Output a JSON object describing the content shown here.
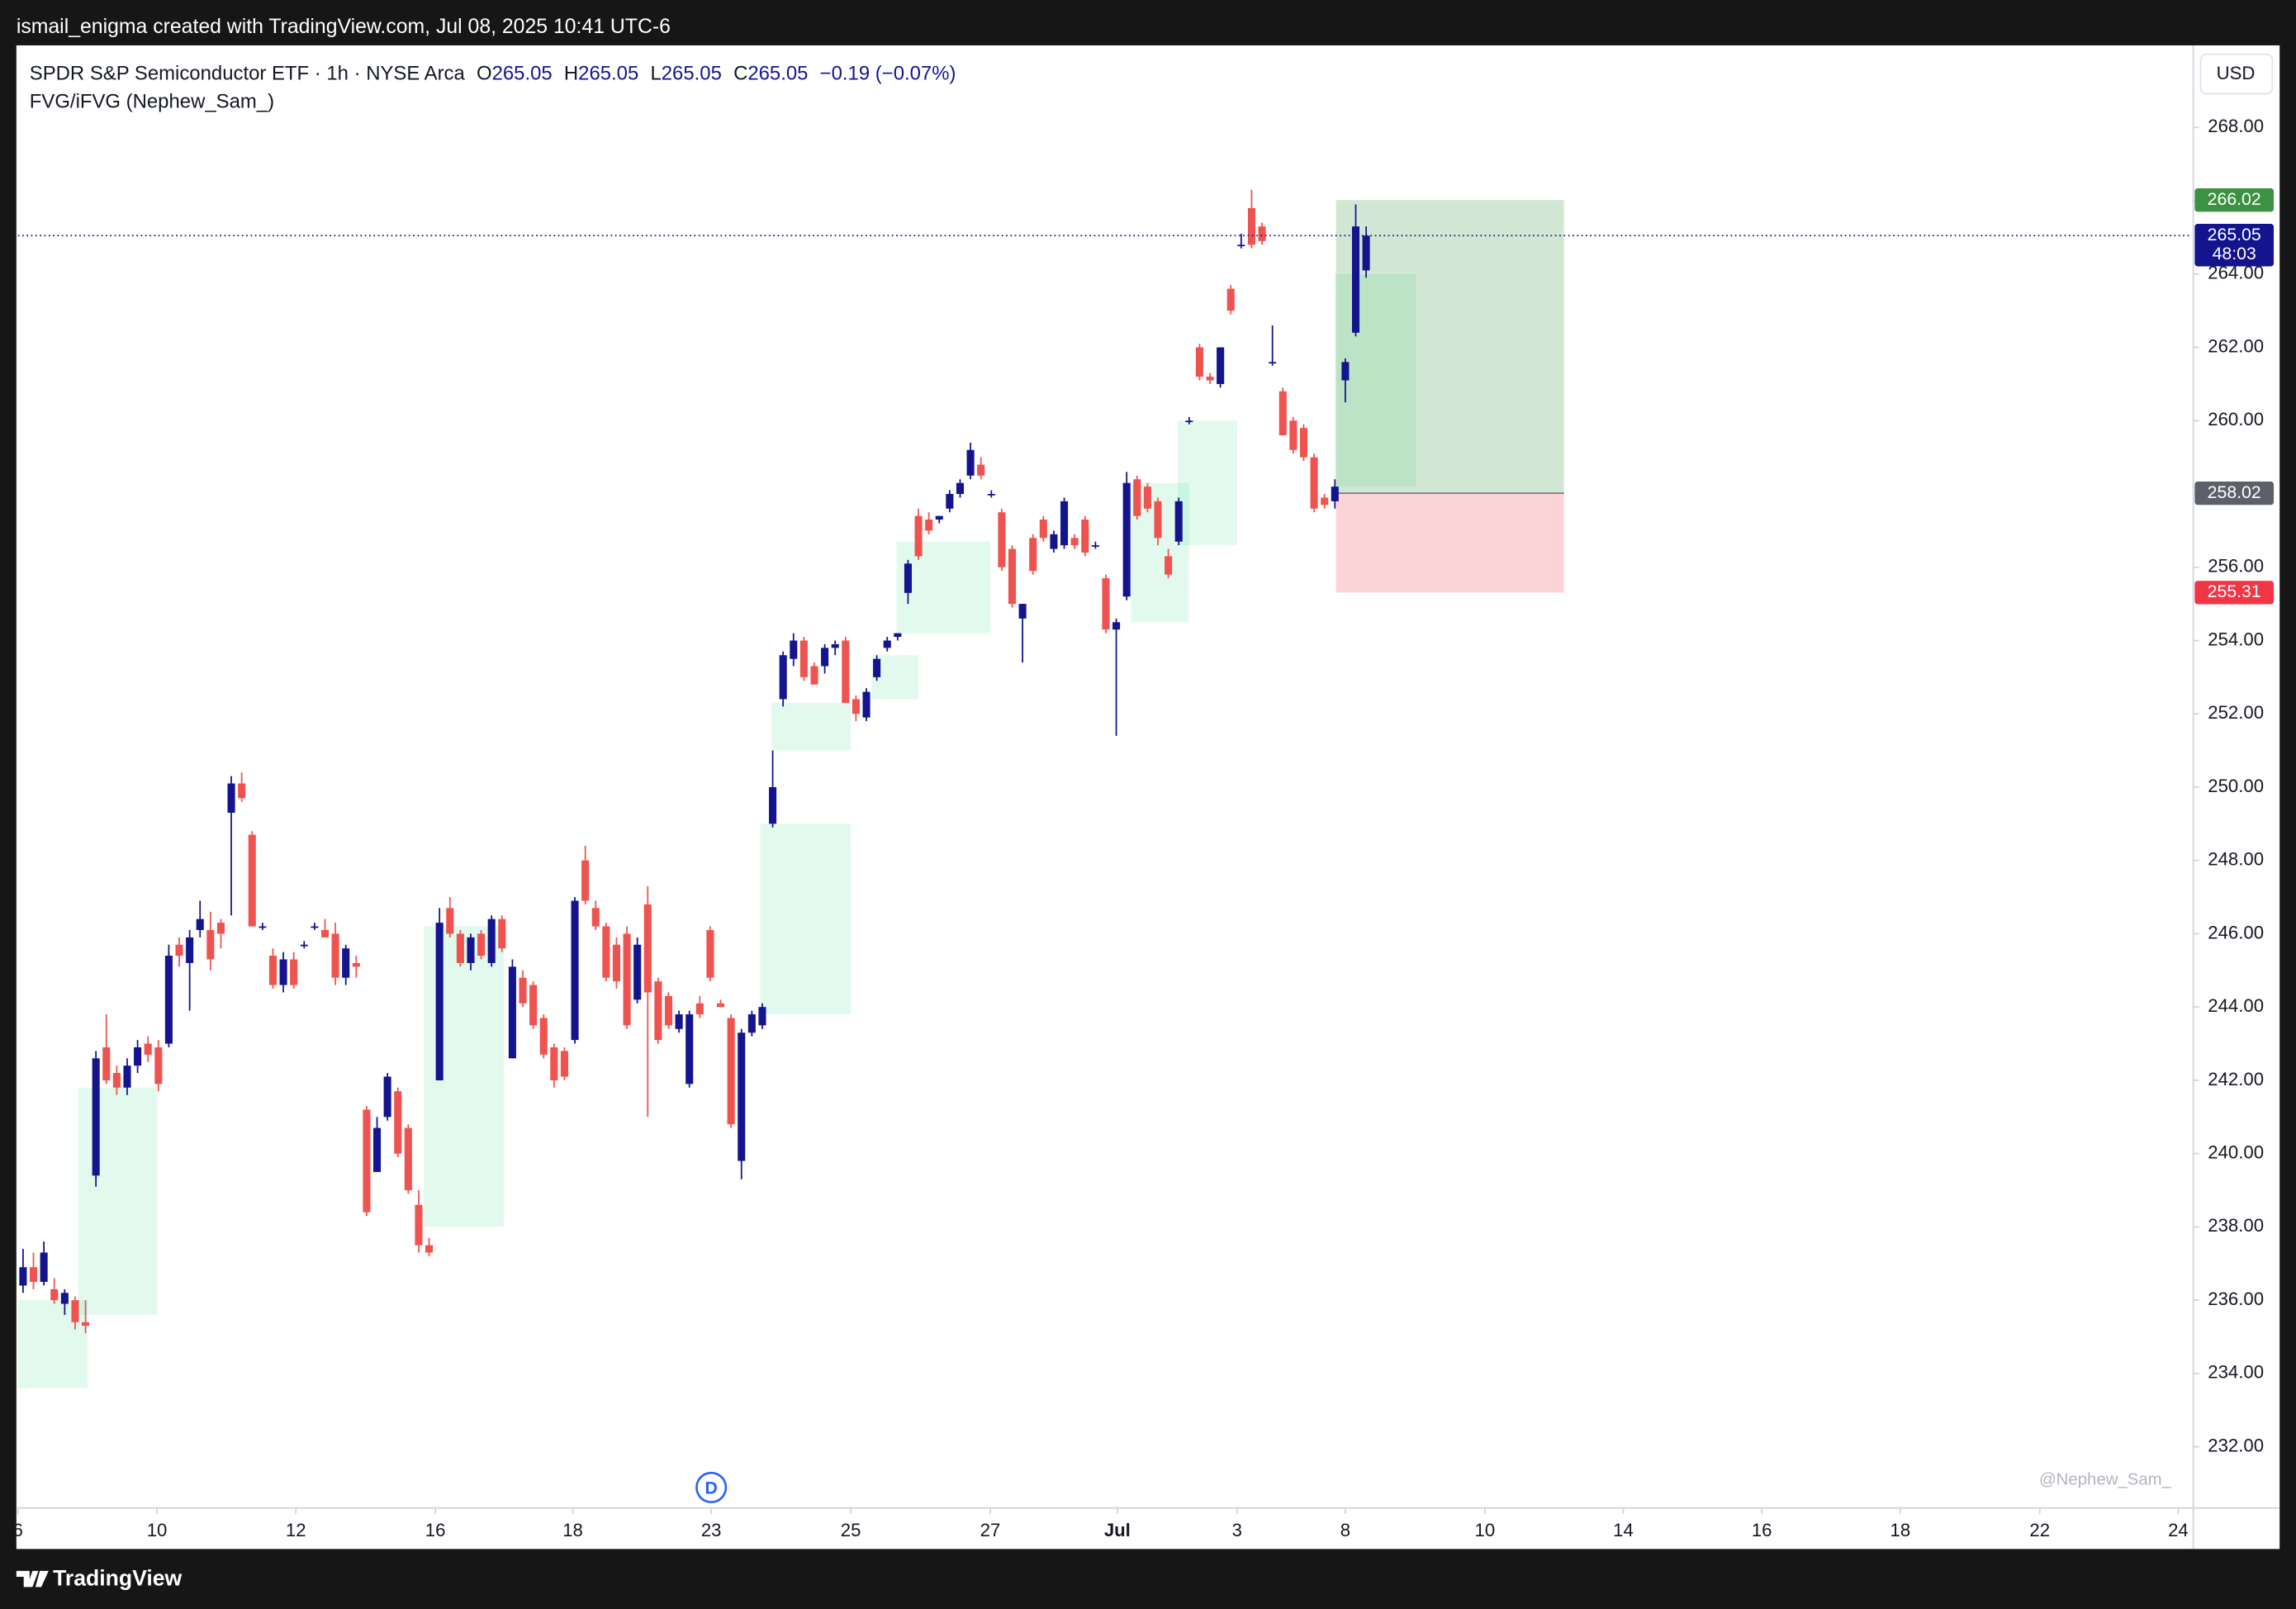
{
  "header": {
    "text": "ismail_enigma created with TradingView.com, Jul 08, 2025 10:41 UTC-6"
  },
  "footer": {
    "brand": "TradingView"
  },
  "chart_data": {
    "type": "candlestick",
    "legend": {
      "symbol": "SPDR S&P Semiconductor ETF · 1h · NYSE Arca",
      "o_label": "O",
      "open": 265.05,
      "h_label": "H",
      "high": 265.05,
      "l_label": "L",
      "low": 265.05,
      "c_label": "C",
      "close": 265.05,
      "change_label": "−0.19 (−0.07%)",
      "indicator": "FVG/iFVG (Nephew_Sam_)"
    },
    "currency": "USD",
    "watermark": "@Nephew_Sam_",
    "marker": {
      "label": "D",
      "x": 66.1
    },
    "up_color": "#14148f",
    "down_color": "#ef5350",
    "grid": false,
    "ohlc": [
      [
        236.4,
        237.4,
        236.2,
        236.9
      ],
      [
        236.9,
        237.3,
        236.3,
        236.5
      ],
      [
        236.5,
        237.6,
        236.4,
        237.3
      ],
      [
        236.3,
        236.6,
        235.9,
        236.0
      ],
      [
        235.9,
        236.3,
        235.6,
        236.2
      ],
      [
        236.0,
        236.1,
        235.2,
        235.4
      ],
      [
        235.4,
        236.0,
        235.1,
        235.3
      ],
      [
        239.4,
        242.8,
        239.1,
        242.6
      ],
      [
        242.9,
        243.8,
        241.9,
        242.0
      ],
      [
        242.2,
        242.4,
        241.6,
        241.8
      ],
      [
        241.8,
        242.6,
        241.6,
        242.4
      ],
      [
        242.4,
        243.1,
        242.2,
        242.9
      ],
      [
        243.0,
        243.2,
        242.5,
        242.7
      ],
      [
        242.9,
        243.1,
        241.7,
        241.9
      ],
      [
        243.0,
        245.7,
        242.9,
        245.4
      ],
      [
        245.7,
        245.9,
        245.1,
        245.4
      ],
      [
        245.2,
        246.1,
        243.9,
        245.9
      ],
      [
        246.1,
        246.9,
        245.9,
        246.4
      ],
      [
        246.1,
        246.6,
        245.0,
        245.3
      ],
      [
        246.3,
        246.4,
        245.6,
        246.0
      ],
      [
        249.3,
        250.3,
        246.5,
        250.1
      ],
      [
        250.1,
        250.4,
        249.6,
        249.7
      ],
      [
        248.7,
        248.8,
        246.2,
        246.2
      ],
      [
        246.2,
        246.3,
        246.1,
        246.2
      ],
      [
        245.4,
        245.6,
        244.5,
        244.6
      ],
      [
        244.6,
        245.5,
        244.4,
        245.3
      ],
      [
        245.3,
        245.5,
        244.5,
        244.6
      ],
      [
        245.7,
        245.8,
        245.6,
        245.7
      ],
      [
        246.2,
        246.3,
        246.1,
        246.2
      ],
      [
        246.1,
        246.4,
        245.9,
        245.9
      ],
      [
        246.0,
        246.3,
        244.6,
        244.8
      ],
      [
        244.8,
        245.7,
        244.6,
        245.6
      ],
      [
        245.2,
        245.4,
        244.8,
        245.1
      ],
      [
        241.2,
        241.3,
        238.3,
        238.4
      ],
      [
        239.5,
        241.0,
        239.5,
        240.7
      ],
      [
        241.0,
        242.2,
        240.9,
        242.1
      ],
      [
        241.7,
        241.8,
        239.9,
        240.0
      ],
      [
        240.7,
        240.8,
        238.9,
        239.0
      ],
      [
        238.6,
        239.0,
        237.3,
        237.5
      ],
      [
        237.5,
        237.7,
        237.2,
        237.3
      ],
      [
        242.0,
        246.7,
        242.0,
        246.3
      ],
      [
        246.7,
        247.0,
        245.9,
        246.0
      ],
      [
        246.0,
        246.1,
        245.1,
        245.2
      ],
      [
        245.2,
        246.0,
        245.0,
        245.9
      ],
      [
        246.0,
        246.1,
        245.3,
        245.4
      ],
      [
        245.2,
        246.5,
        245.1,
        246.4
      ],
      [
        246.4,
        246.5,
        245.5,
        245.6
      ],
      [
        242.6,
        245.3,
        242.6,
        245.1
      ],
      [
        244.8,
        245.0,
        244.0,
        244.1
      ],
      [
        244.6,
        244.7,
        243.4,
        243.5
      ],
      [
        243.7,
        243.8,
        242.6,
        242.7
      ],
      [
        242.9,
        243.0,
        241.8,
        242.0
      ],
      [
        242.8,
        242.9,
        242.0,
        242.1
      ],
      [
        243.1,
        247.0,
        243.0,
        246.9
      ],
      [
        248.0,
        248.4,
        246.8,
        246.9
      ],
      [
        246.7,
        246.9,
        246.1,
        246.2
      ],
      [
        246.2,
        246.3,
        244.7,
        244.8
      ],
      [
        245.7,
        245.9,
        244.5,
        244.7
      ],
      [
        246.0,
        246.2,
        243.4,
        243.5
      ],
      [
        244.2,
        245.9,
        244.1,
        245.7
      ],
      [
        246.8,
        247.3,
        241.0,
        244.4
      ],
      [
        244.7,
        244.8,
        243.0,
        243.1
      ],
      [
        244.3,
        244.4,
        243.4,
        243.5
      ],
      [
        243.4,
        243.9,
        243.3,
        243.8
      ],
      [
        241.9,
        243.9,
        241.8,
        243.8
      ],
      [
        244.1,
        244.3,
        243.7,
        243.8
      ],
      [
        246.1,
        246.2,
        244.7,
        244.8
      ],
      [
        244.1,
        244.2,
        244.0,
        244.0
      ],
      [
        243.7,
        243.8,
        240.7,
        240.8
      ],
      [
        239.8,
        243.4,
        239.3,
        243.3
      ],
      [
        243.3,
        243.9,
        243.2,
        243.8
      ],
      [
        243.5,
        244.1,
        243.4,
        244.0
      ],
      [
        249.0,
        251.0,
        248.9,
        250.0
      ],
      [
        252.4,
        253.7,
        252.2,
        253.6
      ],
      [
        253.5,
        254.2,
        253.3,
        254.0
      ],
      [
        254.0,
        254.1,
        252.9,
        253.0
      ],
      [
        253.3,
        253.4,
        252.8,
        252.8
      ],
      [
        253.3,
        253.9,
        253.1,
        253.8
      ],
      [
        253.8,
        254.0,
        253.6,
        253.9
      ],
      [
        254.0,
        254.1,
        252.3,
        252.3
      ],
      [
        252.4,
        252.5,
        251.8,
        252.0
      ],
      [
        251.9,
        252.7,
        251.8,
        252.6
      ],
      [
        253.0,
        253.6,
        252.9,
        253.5
      ],
      [
        253.8,
        254.1,
        253.7,
        254.0
      ],
      [
        254.1,
        254.2,
        254.0,
        254.2
      ],
      [
        255.3,
        256.2,
        255.0,
        256.1
      ],
      [
        257.4,
        257.6,
        256.2,
        256.3
      ],
      [
        257.3,
        257.5,
        256.9,
        257.0
      ],
      [
        257.3,
        257.4,
        257.2,
        257.4
      ],
      [
        257.6,
        258.1,
        257.5,
        258.0
      ],
      [
        258.0,
        258.4,
        257.9,
        258.3
      ],
      [
        258.5,
        259.4,
        258.4,
        259.2
      ],
      [
        258.8,
        259.0,
        258.4,
        258.5
      ],
      [
        258.0,
        258.1,
        257.9,
        258.0
      ],
      [
        257.5,
        257.6,
        255.9,
        256.0
      ],
      [
        256.5,
        256.6,
        254.9,
        255.0
      ],
      [
        254.6,
        255.0,
        253.4,
        255.0
      ],
      [
        256.8,
        256.9,
        255.8,
        255.9
      ],
      [
        257.3,
        257.4,
        256.7,
        256.8
      ],
      [
        256.5,
        257.0,
        256.4,
        256.9
      ],
      [
        256.6,
        257.9,
        256.5,
        257.8
      ],
      [
        256.8,
        256.9,
        256.5,
        256.6
      ],
      [
        257.3,
        257.4,
        256.3,
        256.4
      ],
      [
        256.6,
        256.7,
        256.5,
        256.6
      ],
      [
        255.7,
        255.8,
        254.2,
        254.3
      ],
      [
        254.3,
        254.6,
        251.4,
        254.5
      ],
      [
        255.2,
        258.6,
        255.1,
        258.3
      ],
      [
        258.4,
        258.5,
        257.3,
        257.4
      ],
      [
        258.2,
        258.3,
        257.5,
        257.6
      ],
      [
        257.8,
        257.9,
        256.6,
        256.8
      ],
      [
        256.3,
        256.5,
        255.7,
        255.8
      ],
      [
        256.7,
        257.9,
        256.6,
        257.8
      ],
      [
        260.0,
        260.1,
        259.9,
        260.0
      ],
      [
        262.0,
        262.1,
        261.1,
        261.2
      ],
      [
        261.2,
        261.3,
        261.0,
        261.1
      ],
      [
        261.0,
        262.0,
        260.9,
        262.0
      ],
      [
        263.6,
        263.7,
        262.9,
        263.0
      ],
      [
        264.8,
        265.1,
        264.7,
        264.8
      ],
      [
        265.8,
        266.3,
        264.7,
        264.8
      ],
      [
        265.3,
        265.4,
        264.8,
        264.9
      ],
      [
        261.6,
        262.6,
        261.5,
        261.6
      ],
      [
        260.8,
        260.9,
        259.6,
        259.6
      ],
      [
        260.0,
        260.1,
        259.1,
        259.2
      ],
      [
        259.8,
        259.9,
        258.9,
        259.0
      ],
      [
        259.0,
        259.1,
        257.5,
        257.6
      ],
      [
        257.9,
        258.0,
        257.6,
        257.7
      ],
      [
        257.8,
        258.4,
        257.6,
        258.2
      ],
      [
        261.1,
        261.7,
        260.5,
        261.6
      ],
      [
        262.4,
        265.9,
        262.3,
        265.3
      ],
      [
        264.1,
        265.3,
        263.9,
        265.05
      ]
    ],
    "fvg_zones": [
      {
        "x": [
          -0.5,
          6.2
        ],
        "y": [
          233.6,
          236.0
        ]
      },
      {
        "x": [
          5.3,
          12.9
        ],
        "y": [
          235.6,
          241.8
        ]
      },
      {
        "x": [
          38.5,
          46.2
        ],
        "y": [
          238.0,
          246.2
        ]
      },
      {
        "x": [
          70.8,
          79.5
        ],
        "y": [
          243.8,
          249.0
        ]
      },
      {
        "x": [
          71.9,
          79.5
        ],
        "y": [
          251.0,
          252.3
        ]
      },
      {
        "x": [
          81.5,
          86.0
        ],
        "y": [
          252.4,
          253.6
        ]
      },
      {
        "x": [
          83.9,
          92.9
        ],
        "y": [
          254.2,
          256.7
        ]
      },
      {
        "x": [
          106.4,
          112.0
        ],
        "y": [
          254.5,
          258.3
        ]
      },
      {
        "x": [
          110.9,
          116.6
        ],
        "y": [
          256.6,
          260.0
        ]
      },
      {
        "x": [
          126.0,
          133.8
        ],
        "y": [
          258.2,
          264.0
        ]
      }
    ],
    "position": {
      "x": [
        126.1,
        148.0
      ],
      "entry": 258.02,
      "target": 266.02,
      "stop": 255.31
    },
    "last_price": 265.05,
    "countdown": "48:03",
    "xlim": [
      -0.5,
      208.3
    ],
    "xticks": [
      {
        "value": -0.5,
        "label": "6"
      },
      {
        "value": 12.86,
        "label": "10"
      },
      {
        "value": 26.2,
        "label": "12"
      },
      {
        "value": 39.6,
        "label": "16"
      },
      {
        "value": 52.8,
        "label": "18"
      },
      {
        "value": 66.1,
        "label": "23"
      },
      {
        "value": 79.5,
        "label": "25"
      },
      {
        "value": 92.9,
        "label": "27"
      },
      {
        "value": 105.1,
        "label": "Jul"
      },
      {
        "value": 116.6,
        "label": "3"
      },
      {
        "value": 127.0,
        "label": "8"
      },
      {
        "value": 140.4,
        "label": "10"
      },
      {
        "value": 153.7,
        "label": "14"
      },
      {
        "value": 167.0,
        "label": "16"
      },
      {
        "value": 180.3,
        "label": "18"
      },
      {
        "value": 193.7,
        "label": "22"
      },
      {
        "value": 207.0,
        "label": "24"
      }
    ],
    "ylim": [
      230.33,
      270.24
    ],
    "yticks": [
      {
        "value": 232,
        "label": "232.00"
      },
      {
        "value": 234,
        "label": "234.00"
      },
      {
        "value": 236,
        "label": "236.00"
      },
      {
        "value": 238,
        "label": "238.00"
      },
      {
        "value": 240,
        "label": "240.00"
      },
      {
        "value": 242,
        "label": "242.00"
      },
      {
        "value": 244,
        "label": "244.00"
      },
      {
        "value": 246,
        "label": "246.00"
      },
      {
        "value": 248,
        "label": "248.00"
      },
      {
        "value": 250,
        "label": "250.00"
      },
      {
        "value": 252,
        "label": "252.00"
      },
      {
        "value": 254,
        "label": "254.00"
      },
      {
        "value": 256,
        "label": "256.00"
      },
      {
        "value": 258,
        "label": "258.00"
      },
      {
        "value": 260,
        "label": "260.00"
      },
      {
        "value": 262,
        "label": "262.00"
      },
      {
        "value": 264,
        "label": "264.00"
      },
      {
        "value": 266,
        "label": "266.00"
      },
      {
        "value": 268,
        "label": "268.00"
      }
    ]
  }
}
